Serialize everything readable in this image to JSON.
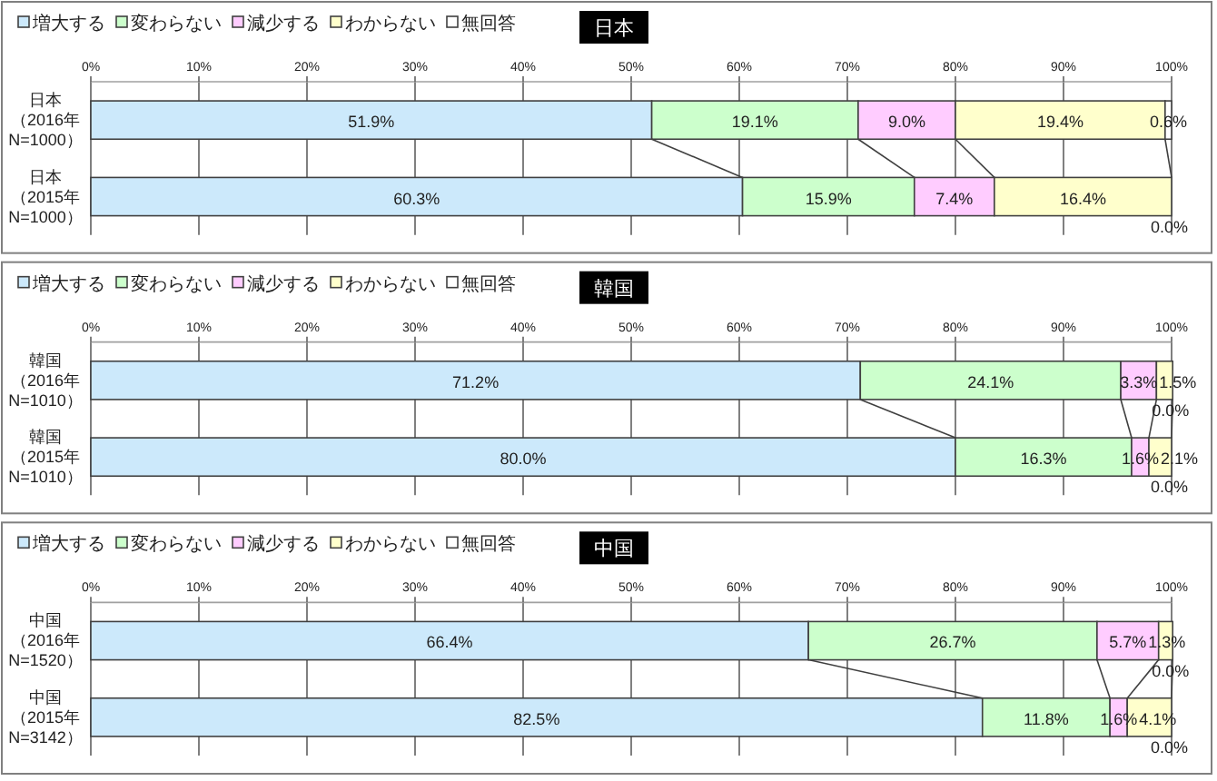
{
  "chart_data": [
    {
      "type": "bar",
      "orientation": "horizontal",
      "stacked": true,
      "title": "日本",
      "categories": [
        "日本（2016年N=1000）",
        "日本（2015年N=1000）"
      ],
      "xlim": [
        0,
        100
      ],
      "xticks": [
        {
          "value": 0,
          "label": "0%"
        },
        {
          "value": 10,
          "label": "10%"
        },
        {
          "value": 20,
          "label": "20%"
        },
        {
          "value": 30,
          "label": "30%"
        },
        {
          "value": 40,
          "label": "40%"
        },
        {
          "value": 50,
          "label": "50%"
        },
        {
          "value": 60,
          "label": "60%"
        },
        {
          "value": 70,
          "label": "70%"
        },
        {
          "value": 80,
          "label": "80%"
        },
        {
          "value": 90,
          "label": "90%"
        },
        {
          "value": 100,
          "label": "100%"
        }
      ],
      "grid": "x",
      "legend": "top left",
      "series": [
        {
          "name": "増大する",
          "color": "#cce9fb",
          "values": [
            51.9,
            60.3
          ],
          "value_labels": [
            "51.9%",
            "60.3%"
          ]
        },
        {
          "name": "変わらない",
          "color": "#ccffcc",
          "values": [
            19.1,
            15.9
          ],
          "value_labels": [
            "19.1%",
            "15.9%"
          ]
        },
        {
          "name": "減少する",
          "color": "#ffccff",
          "values": [
            9.0,
            7.4
          ],
          "value_labels": [
            "9.0%",
            "7.4%"
          ]
        },
        {
          "name": "わからない",
          "color": "#ffffcc",
          "values": [
            19.4,
            16.4
          ],
          "value_labels": [
            "19.4%",
            "16.4%"
          ]
        },
        {
          "name": "無回答",
          "color": "#ffffff",
          "values": [
            0.6,
            0.0
          ],
          "value_labels": [
            "0.6%",
            "0.0%"
          ]
        }
      ]
    },
    {
      "type": "bar",
      "orientation": "horizontal",
      "stacked": true,
      "title": "韓国",
      "categories": [
        "韓国（2016年N=1010）",
        "韓国（2015年N=1010）"
      ],
      "xlim": [
        0,
        100
      ],
      "xticks": [
        {
          "value": 0,
          "label": "0%"
        },
        {
          "value": 10,
          "label": "10%"
        },
        {
          "value": 20,
          "label": "20%"
        },
        {
          "value": 30,
          "label": "30%"
        },
        {
          "value": 40,
          "label": "40%"
        },
        {
          "value": 50,
          "label": "50%"
        },
        {
          "value": 60,
          "label": "60%"
        },
        {
          "value": 70,
          "label": "70%"
        },
        {
          "value": 80,
          "label": "80%"
        },
        {
          "value": 90,
          "label": "90%"
        },
        {
          "value": 100,
          "label": "100%"
        }
      ],
      "grid": "x",
      "legend": "top left",
      "series": [
        {
          "name": "増大する",
          "color": "#cce9fb",
          "values": [
            71.2,
            80.0
          ],
          "value_labels": [
            "71.2%",
            "80.0%"
          ]
        },
        {
          "name": "変わらない",
          "color": "#ccffcc",
          "values": [
            24.1,
            16.3
          ],
          "value_labels": [
            "24.1%",
            "16.3%"
          ]
        },
        {
          "name": "減少する",
          "color": "#ffccff",
          "values": [
            3.3,
            1.6
          ],
          "value_labels": [
            "3.3%",
            "1.6%"
          ]
        },
        {
          "name": "わからない",
          "color": "#ffffcc",
          "values": [
            1.5,
            2.1
          ],
          "value_labels": [
            "1.5%",
            "2.1%"
          ]
        },
        {
          "name": "無回答",
          "color": "#ffffff",
          "values": [
            0.0,
            0.0
          ],
          "value_labels": [
            "0.0%",
            "0.0%"
          ]
        }
      ]
    },
    {
      "type": "bar",
      "orientation": "horizontal",
      "stacked": true,
      "title": "中国",
      "categories": [
        "中国（2016年N=1520）",
        "中国（2015年N=3142）"
      ],
      "xlim": [
        0,
        100
      ],
      "xticks": [
        {
          "value": 0,
          "label": "0%"
        },
        {
          "value": 10,
          "label": "10%"
        },
        {
          "value": 20,
          "label": "20%"
        },
        {
          "value": 30,
          "label": "30%"
        },
        {
          "value": 40,
          "label": "40%"
        },
        {
          "value": 50,
          "label": "50%"
        },
        {
          "value": 60,
          "label": "60%"
        },
        {
          "value": 70,
          "label": "70%"
        },
        {
          "value": 80,
          "label": "80%"
        },
        {
          "value": 90,
          "label": "90%"
        },
        {
          "value": 100,
          "label": "100%"
        }
      ],
      "grid": "x",
      "legend": "top left",
      "series": [
        {
          "name": "増大する",
          "color": "#cce9fb",
          "values": [
            66.4,
            82.5
          ],
          "value_labels": [
            "66.4%",
            "82.5%"
          ]
        },
        {
          "name": "変わらない",
          "color": "#ccffcc",
          "values": [
            26.7,
            11.8
          ],
          "value_labels": [
            "26.7%",
            "11.8%"
          ]
        },
        {
          "name": "減少する",
          "color": "#ffccff",
          "values": [
            5.7,
            1.6
          ],
          "value_labels": [
            "5.7%",
            "1.6%"
          ]
        },
        {
          "name": "わからない",
          "color": "#ffffcc",
          "values": [
            1.3,
            4.1
          ],
          "value_labels": [
            "1.3%",
            "4.1%"
          ]
        },
        {
          "name": "無回答",
          "color": "#ffffff",
          "values": [
            0.0,
            0.0
          ],
          "value_labels": [
            "0.0%",
            "0.0%"
          ]
        }
      ]
    }
  ]
}
